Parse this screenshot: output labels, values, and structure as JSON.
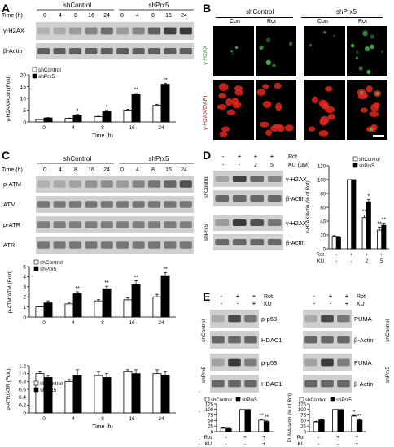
{
  "panels": [
    "A",
    "B",
    "C",
    "D",
    "E"
  ],
  "colors": {
    "bar_black": "#000000",
    "bar_white": "#ffffff",
    "blot_band": "#3a3a3a",
    "blot_bg": "#cfcfcf",
    "h2ax_green": "#4bd24b",
    "dapi_red": "#e2281e",
    "fluor_bg": "#000000",
    "scale_bar": "#ffffff"
  },
  "panel_A": {
    "group_left": "shControl",
    "group_right": "shPrx5",
    "time_label": "Time (h)",
    "times": [
      "0",
      "4",
      "8",
      "16",
      "24",
      "0",
      "4",
      "8",
      "16",
      "24"
    ],
    "blots": [
      "γ-H2AX",
      "β-Actin"
    ],
    "chart_data": {
      "type": "bar",
      "categories": [
        "0",
        "4",
        "8",
        "16",
        "24"
      ],
      "series": [
        {
          "name": "shControl",
          "values": [
            1.0,
            1.5,
            2.2,
            5.0,
            7.0
          ],
          "errors": [
            0.1,
            0.15,
            0.2,
            0.4,
            0.5
          ]
        },
        {
          "name": "shPrx5",
          "values": [
            1.7,
            2.9,
            4.6,
            11.6,
            16.0
          ],
          "errors": [
            0.15,
            0.3,
            0.3,
            0.6,
            0.4
          ]
        }
      ],
      "significance": [
        [
          "",
          ""
        ],
        [
          "",
          "*"
        ],
        [
          "",
          "*"
        ],
        [
          "",
          "**"
        ],
        [
          "",
          "**"
        ]
      ],
      "ylabel": "γ-H2AX/Actin (Fold)",
      "xlabel": "Time (h)",
      "ylim": [
        0,
        20
      ],
      "yticks": [
        "0",
        "5",
        "10",
        "15",
        "20"
      ],
      "legend_position": "top-left"
    }
  },
  "panel_B": {
    "group_left": "shControl",
    "group_right": "shPrx5",
    "columns": [
      "Con",
      "Rot",
      "Con",
      "Rot"
    ],
    "rows": [
      "γ-H2AX",
      "γ-H2AX/DAPI"
    ]
  },
  "panel_C": {
    "group_left": "shControl",
    "group_right": "shPrx5",
    "time_label": "Time (h)",
    "times": [
      "0",
      "4",
      "8",
      "16",
      "24",
      "0",
      "4",
      "8",
      "16",
      "24"
    ],
    "blots": [
      "p-ATM",
      "ATM",
      "p-ATR",
      "ATR"
    ],
    "chart_data": [
      {
        "type": "bar",
        "categories": [
          "0",
          "4",
          "8",
          "16",
          "24"
        ],
        "series": [
          {
            "name": "shControl",
            "values": [
              1.0,
              1.3,
              1.6,
              1.7,
              2.0
            ],
            "errors": [
              0.1,
              0.15,
              0.15,
              0.2,
              0.25
            ]
          },
          {
            "name": "shPrx5",
            "values": [
              1.4,
              2.3,
              2.8,
              3.2,
              4.1
            ],
            "errors": [
              0.2,
              0.2,
              0.25,
              0.4,
              0.3
            ]
          }
        ],
        "significance": [
          [
            "",
            ""
          ],
          [
            "",
            "**"
          ],
          [
            "",
            "**"
          ],
          [
            "",
            "**"
          ],
          [
            "",
            "**"
          ]
        ],
        "ylabel": "p-ATM/ATM (Fold)",
        "ylim": [
          0,
          5
        ],
        "yticks": [
          "0",
          "1",
          "2",
          "3",
          "4",
          "5"
        ],
        "legend_position": "top-left"
      },
      {
        "type": "bar",
        "categories": [
          "0",
          "4",
          "8",
          "16",
          "24"
        ],
        "series": [
          {
            "name": "shControl",
            "values": [
              1.0,
              0.8,
              0.95,
              1.05,
              1.0
            ],
            "errors": [
              0.05,
              0.05,
              0.1,
              0.05,
              0.1
            ]
          },
          {
            "name": "shPrx5",
            "values": [
              0.9,
              0.95,
              0.9,
              1.0,
              0.95
            ],
            "errors": [
              0.05,
              0.15,
              0.1,
              0.1,
              0.1
            ]
          }
        ],
        "significance": [
          [
            "",
            ""
          ],
          [
            "",
            ""
          ],
          [
            "",
            ""
          ],
          [
            "",
            ""
          ],
          [
            "",
            ""
          ]
        ],
        "ylabel": "p-ATR/ATR (Fold)",
        "xlabel": "Time (h)",
        "ylim": [
          0,
          1.2
        ],
        "yticks": [
          "0",
          "0.2",
          "0.4",
          "0.6",
          "0.8",
          "1.0",
          "1.2"
        ],
        "legend_position": "bottom-left"
      }
    ]
  },
  "panel_D": {
    "rot_label": "Rot",
    "ku_label": "KU (μM)",
    "rot_signs": [
      "-",
      "+",
      "+",
      "+"
    ],
    "ku_values": [
      "-",
      "-",
      "2",
      "5"
    ],
    "row_groups": [
      "shControl",
      "shPrx5"
    ],
    "blots": [
      "γ-H2AX",
      "β-Actin"
    ],
    "chart_data": {
      "type": "bar",
      "categories": [
        "1",
        "2",
        "3",
        "4"
      ],
      "series": [
        {
          "name": "shControl",
          "values": [
            18,
            100,
            45,
            27
          ],
          "errors": [
            1,
            0,
            4,
            4
          ]
        },
        {
          "name": "shPrx5",
          "values": [
            17,
            100,
            68,
            34
          ],
          "errors": [
            1,
            0,
            3,
            3
          ]
        }
      ],
      "significance": [
        [
          "",
          ""
        ],
        [
          "",
          ""
        ],
        [
          "**",
          "*"
        ],
        [
          "**",
          "**"
        ]
      ],
      "ylabel": "γ-H2AX/Actin (% of Rot)",
      "ylim": [
        0,
        120
      ],
      "yticks": [
        "0",
        "20",
        "40",
        "60",
        "80",
        "100",
        "120"
      ],
      "x_rows": [
        {
          "label": "Rot",
          "values": [
            "-",
            "+",
            "+",
            "+"
          ]
        },
        {
          "label": "KU",
          "values": [
            "-",
            "-",
            "2",
            "5"
          ]
        }
      ],
      "legend_position": "top-right"
    }
  },
  "panel_E": {
    "left": {
      "rot_label": "Rot",
      "ku_label": "KU",
      "rot_signs": [
        "-",
        "+",
        "+"
      ],
      "ku_signs": [
        "-",
        "-",
        "+"
      ],
      "row_groups": [
        "shControl",
        "shPrx5"
      ],
      "blots": [
        "p-p53",
        "HDAC1",
        "p-p53",
        "HDAC1"
      ],
      "chart_data": {
        "type": "bar",
        "categories": [
          "1",
          "2",
          "3"
        ],
        "series": [
          {
            "name": "shControl",
            "values": [
              15,
              100,
              52
            ],
            "errors": [
              3,
              0,
              5
            ]
          },
          {
            "name": "shPrx5",
            "values": [
              13,
              100,
              45
            ],
            "errors": [
              2,
              0,
              4
            ]
          }
        ],
        "significance": [
          [
            "",
            ""
          ],
          [
            "",
            ""
          ],
          [
            "**",
            "**"
          ]
        ],
        "ylabel": "p-p53/HDAC1 (% of Rot)",
        "ylim": [
          0,
          125
        ],
        "yticks": [
          "0",
          "25",
          "50",
          "75",
          "100",
          "125"
        ],
        "x_rows": [
          {
            "label": "Rot",
            "values": [
              "-",
              "+",
              "+"
            ]
          },
          {
            "label": "KU",
            "values": [
              "-",
              "-",
              "+"
            ]
          }
        ],
        "legend_position": "top"
      }
    },
    "right": {
      "rot_label": "Rot",
      "ku_label": "KU",
      "rot_signs": [
        "-",
        "+",
        "+"
      ],
      "ku_signs": [
        "-",
        "-",
        "+"
      ],
      "row_groups": [
        "shControl",
        "shPrx5"
      ],
      "blots": [
        "PUMA",
        "β-Actin",
        "PUMA",
        "β-Actin"
      ],
      "chart_data": {
        "type": "bar",
        "categories": [
          "1",
          "2",
          "3"
        ],
        "series": [
          {
            "name": "shControl",
            "values": [
              44,
              100,
              70
            ],
            "errors": [
              3,
              0,
              3
            ]
          },
          {
            "name": "shPrx5",
            "values": [
              53,
              100,
              52
            ],
            "errors": [
              4,
              0,
              4
            ]
          }
        ],
        "significance": [
          [
            "",
            ""
          ],
          [
            "",
            ""
          ],
          [
            "*",
            "**"
          ]
        ],
        "ylabel": "PUMA/actin (% of Rot)",
        "ylim": [
          0,
          125
        ],
        "yticks": [
          "0",
          "25",
          "50",
          "75",
          "100",
          "125"
        ],
        "x_rows": [
          {
            "label": "Rot",
            "values": [
              "-",
              "+",
              "+"
            ]
          },
          {
            "label": "KU",
            "values": [
              "-",
              "-",
              "+"
            ]
          }
        ],
        "legend_position": "top"
      }
    }
  }
}
